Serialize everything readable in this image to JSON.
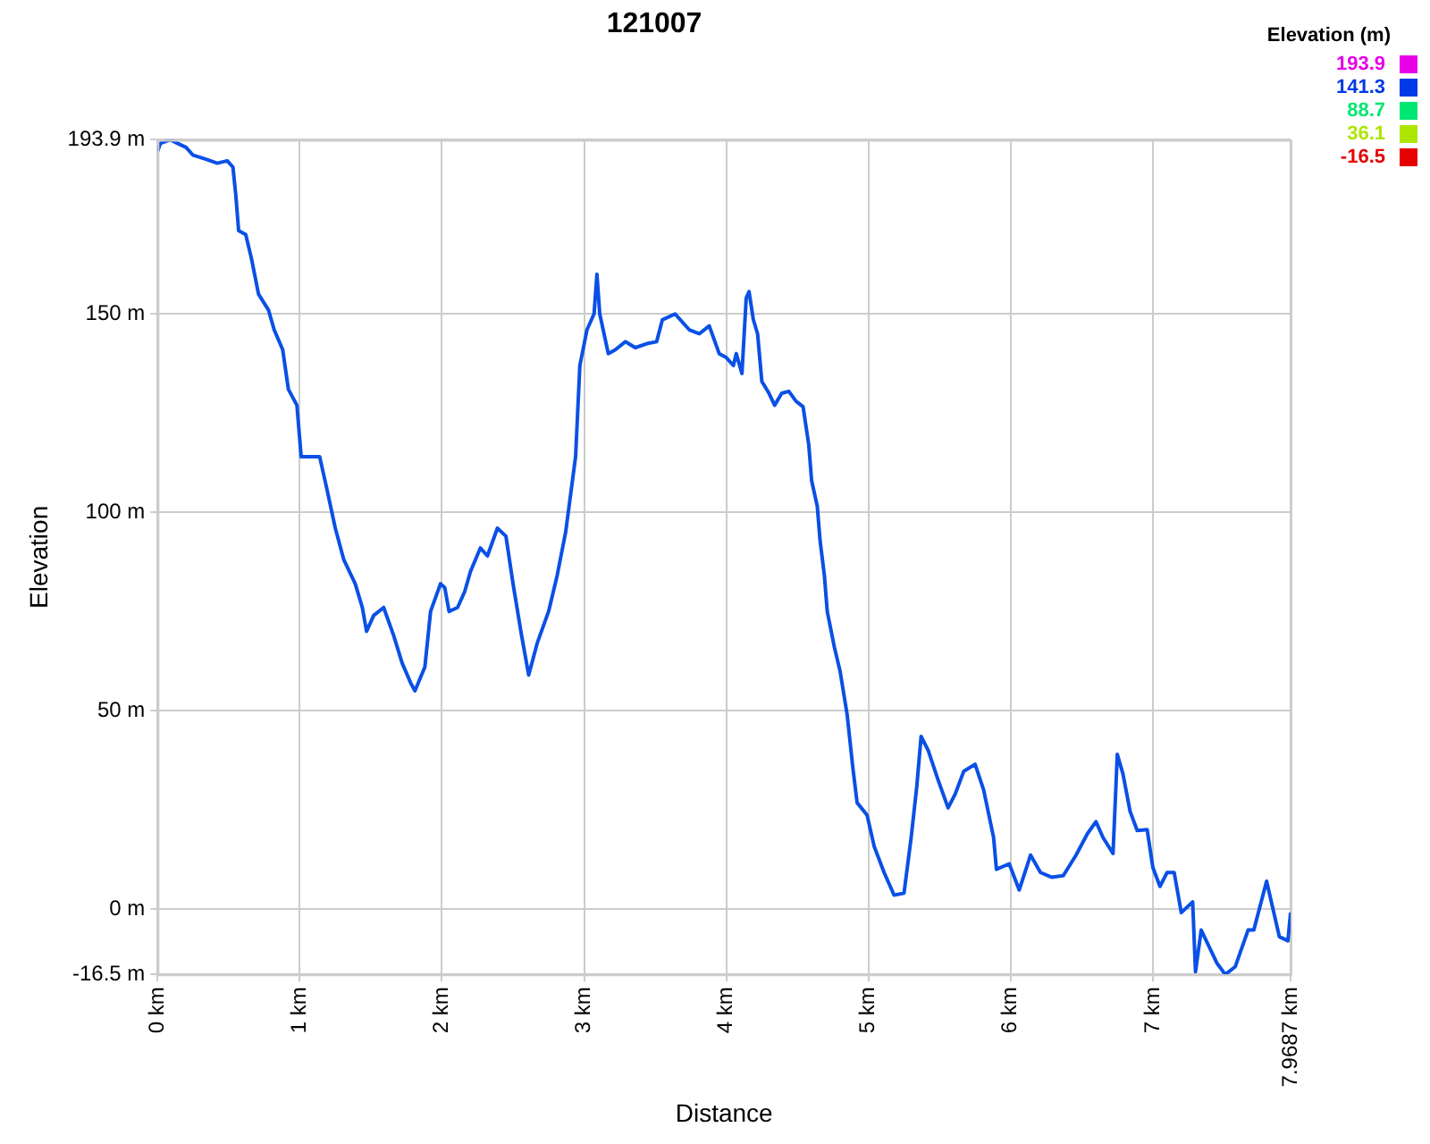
{
  "chart_data": {
    "type": "line",
    "title": "121007",
    "xlabel": "Distance",
    "ylabel": "Elevation",
    "clabel": "Elevation (m)",
    "clim": [
      -16.5,
      193.9
    ],
    "cticks": [
      193.9,
      141.3,
      88.7,
      36.1,
      -16.5
    ],
    "xlim": [
      0,
      7.9687
    ],
    "xticks": [
      {
        "value": 0,
        "label": "0 km"
      },
      {
        "value": 1,
        "label": "1 km"
      },
      {
        "value": 2,
        "label": "2 km"
      },
      {
        "value": 3,
        "label": "3 km"
      },
      {
        "value": 4,
        "label": "4 km"
      },
      {
        "value": 5,
        "label": "5 km"
      },
      {
        "value": 6,
        "label": "6 km"
      },
      {
        "value": 7,
        "label": "7 km"
      },
      {
        "value": 7.9687,
        "label": "7.9687 km"
      }
    ],
    "ylim": [
      -16.5,
      193.9
    ],
    "yticks": [
      {
        "value": -16.5,
        "label": "-16.5 m"
      },
      {
        "value": 0,
        "label": "0 m"
      },
      {
        "value": 50,
        "label": "50 m"
      },
      {
        "value": 100,
        "label": "100 m"
      },
      {
        "value": 150,
        "label": "150 m"
      },
      {
        "value": 193.9,
        "label": "193.9 m"
      }
    ],
    "grid": true,
    "legend": false,
    "marker": "none",
    "line_style": "solid",
    "series": [
      {
        "x": [
          0,
          0.02,
          0.09,
          0.14,
          0.2,
          0.25,
          0.34,
          0.42,
          0.49,
          0.53,
          0.55,
          0.57,
          0.62,
          0.66,
          0.71,
          0.78,
          0.82,
          0.88,
          0.92,
          0.98,
          1.01,
          1.05,
          1.14,
          1.19,
          1.25,
          1.31,
          1.39,
          1.44,
          1.47,
          1.52,
          1.59,
          1.66,
          1.72,
          1.78,
          1.81,
          1.88,
          1.92,
          1.99,
          2.02,
          2.05,
          2.11,
          2.16,
          2.2,
          2.27,
          2.32,
          2.39,
          2.45,
          2.5,
          2.56,
          2.61,
          2.67,
          2.75,
          2.81,
          2.87,
          2.94,
          2.97,
          3.02,
          3.07,
          3.09,
          3.11,
          3.17,
          3.22,
          3.29,
          3.36,
          3.44,
          3.51,
          3.55,
          3.64,
          3.74,
          3.81,
          3.88,
          3.95,
          4.0,
          4.05,
          4.07,
          4.11,
          4.14,
          4.16,
          4.19,
          4.22,
          4.25,
          4.3,
          4.34,
          4.39,
          4.44,
          4.49,
          4.54,
          4.58,
          4.6,
          4.64,
          4.66,
          4.69,
          4.71,
          4.76,
          4.8,
          4.85,
          4.89,
          4.92,
          4.99,
          5.04,
          5.11,
          5.18,
          5.25,
          5.3,
          5.34,
          5.37,
          5.42,
          5.49,
          5.56,
          5.61,
          5.67,
          5.75,
          5.81,
          5.88,
          5.9,
          5.99,
          6.06,
          6.14,
          6.21,
          6.29,
          6.37,
          6.46,
          6.54,
          6.6,
          6.65,
          6.72,
          6.75,
          6.79,
          6.84,
          6.89,
          6.96,
          7.0,
          7.05,
          7.1,
          7.15,
          7.2,
          7.28,
          7.3,
          7.34,
          7.45,
          7.51,
          7.58,
          7.67,
          7.71,
          7.8,
          7.89,
          7.95,
          7.9687
        ],
        "color": "#0a50e6",
        "values": [
          191,
          193,
          193.9,
          193,
          192,
          190,
          189,
          188,
          188.6,
          187,
          180,
          171,
          170,
          164,
          155,
          151,
          146,
          141,
          131,
          127,
          114,
          114,
          114,
          106,
          96,
          88,
          82,
          76,
          70,
          74,
          76,
          69,
          62,
          57,
          55,
          61,
          75,
          82,
          81,
          75,
          76,
          80,
          85,
          91,
          89,
          96,
          94,
          82,
          69,
          59,
          67,
          75,
          84,
          95,
          114,
          137,
          146,
          150,
          160,
          150,
          140,
          141,
          143,
          141.5,
          142.5,
          143,
          148.5,
          150,
          146,
          145,
          147,
          140,
          139,
          137,
          140,
          135,
          154,
          155.6,
          148.6,
          145,
          133,
          130,
          127,
          130,
          130.5,
          128,
          126.6,
          117,
          108,
          101.5,
          92.7,
          84,
          75,
          66,
          60,
          49,
          35.6,
          26.8,
          23.7,
          15.8,
          9.2,
          3.5,
          4,
          18,
          31,
          43.5,
          40,
          32.5,
          25.5,
          29,
          34.7,
          36.5,
          30,
          18,
          10,
          11.4,
          4.8,
          13.6,
          9.2,
          8,
          8.4,
          13.6,
          19,
          22,
          18,
          14,
          39,
          34,
          24.6,
          19.8,
          20,
          10.5,
          5.7,
          9.2,
          9.2,
          -0.9,
          1.8,
          -15.8,
          -5.3,
          -13.6,
          -16.5,
          -14.5,
          -5.3,
          -5.3,
          7,
          -7,
          -8,
          -0.9
        ]
      }
    ]
  }
}
